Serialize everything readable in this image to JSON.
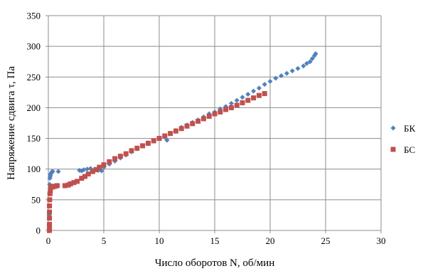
{
  "chart_data": {
    "type": "scatter",
    "title": "",
    "xlabel": "Число оборотов N, об/мин",
    "ylabel": "Напряжение сдвига τ, Па",
    "xlim": [
      0,
      30
    ],
    "ylim": [
      0,
      350
    ],
    "x_ticks": [
      "0",
      "5",
      "10",
      "15",
      "20",
      "25",
      "30"
    ],
    "y_ticks": [
      "0",
      "50",
      "100",
      "150",
      "200",
      "250",
      "300",
      "350"
    ],
    "grid": true,
    "legend_position": "right",
    "series": [
      {
        "name": "БК",
        "color": "#4f81bd",
        "marker": "diamond",
        "x": [
          0.05,
          0.06,
          0.07,
          0.08,
          0.1,
          0.12,
          0.14,
          0.16,
          0.18,
          0.2,
          0.25,
          0.3,
          0.35,
          0.4,
          0.9,
          2.8,
          3.0,
          3.2,
          3.5,
          3.8,
          4.2,
          4.5,
          4.8,
          5.0,
          5.5,
          6.0,
          6.5,
          7.0,
          7.5,
          8.0,
          8.5,
          9.0,
          9.5,
          10.0,
          10.5,
          10.7,
          11.0,
          11.5,
          12.0,
          12.5,
          13.0,
          13.5,
          14.0,
          14.5,
          15.0,
          15.5,
          16.0,
          16.5,
          17.0,
          17.5,
          18.0,
          18.5,
          19.0,
          19.5,
          20.0,
          20.5,
          21.0,
          21.5,
          22.0,
          22.5,
          23.0,
          23.3,
          23.6,
          23.8,
          24.0,
          24.1
        ],
        "y": [
          2,
          10,
          25,
          40,
          60,
          75,
          85,
          88,
          90,
          92,
          93,
          95,
          96,
          96,
          96,
          98,
          97,
          99,
          100,
          101,
          100,
          98,
          97,
          103,
          108,
          113,
          118,
          123,
          128,
          133,
          138,
          143,
          146,
          150,
          152,
          147,
          158,
          163,
          168,
          172,
          176,
          180,
          185,
          190,
          193,
          198,
          202,
          207,
          212,
          217,
          222,
          227,
          232,
          238,
          243,
          248,
          252,
          256,
          260,
          264,
          268,
          272,
          275,
          280,
          285,
          288
        ]
      },
      {
        "name": "БС",
        "color": "#c0504d",
        "marker": "square",
        "x": [
          0.1,
          0.1,
          0.1,
          0.1,
          0.1,
          0.1,
          0.12,
          0.15,
          0.18,
          0.2,
          0.3,
          0.4,
          0.5,
          0.6,
          0.8,
          1.5,
          1.8,
          2.0,
          2.3,
          2.6,
          3.0,
          3.3,
          3.6,
          4.0,
          4.3,
          4.6,
          5.0,
          5.5,
          6.0,
          6.5,
          7.0,
          7.5,
          8.0,
          8.5,
          9.0,
          9.5,
          10.0,
          10.5,
          11.0,
          11.5,
          12.0,
          12.5,
          13.0,
          13.5,
          14.0,
          14.5,
          15.0,
          15.5,
          16.0,
          16.5,
          17.0,
          17.5,
          18.0,
          18.5,
          19.0,
          19.5
        ],
        "y": [
          0,
          5,
          10,
          20,
          30,
          40,
          50,
          60,
          65,
          70,
          71,
          71,
          72,
          72,
          73,
          73,
          74,
          76,
          78,
          80,
          85,
          88,
          92,
          96,
          99,
          103,
          107,
          112,
          117,
          121,
          125,
          130,
          134,
          138,
          142,
          146,
          150,
          154,
          158,
          162,
          166,
          170,
          174,
          178,
          182,
          186,
          190,
          193,
          197,
          200,
          204,
          208,
          212,
          216,
          220,
          223
        ]
      }
    ]
  }
}
